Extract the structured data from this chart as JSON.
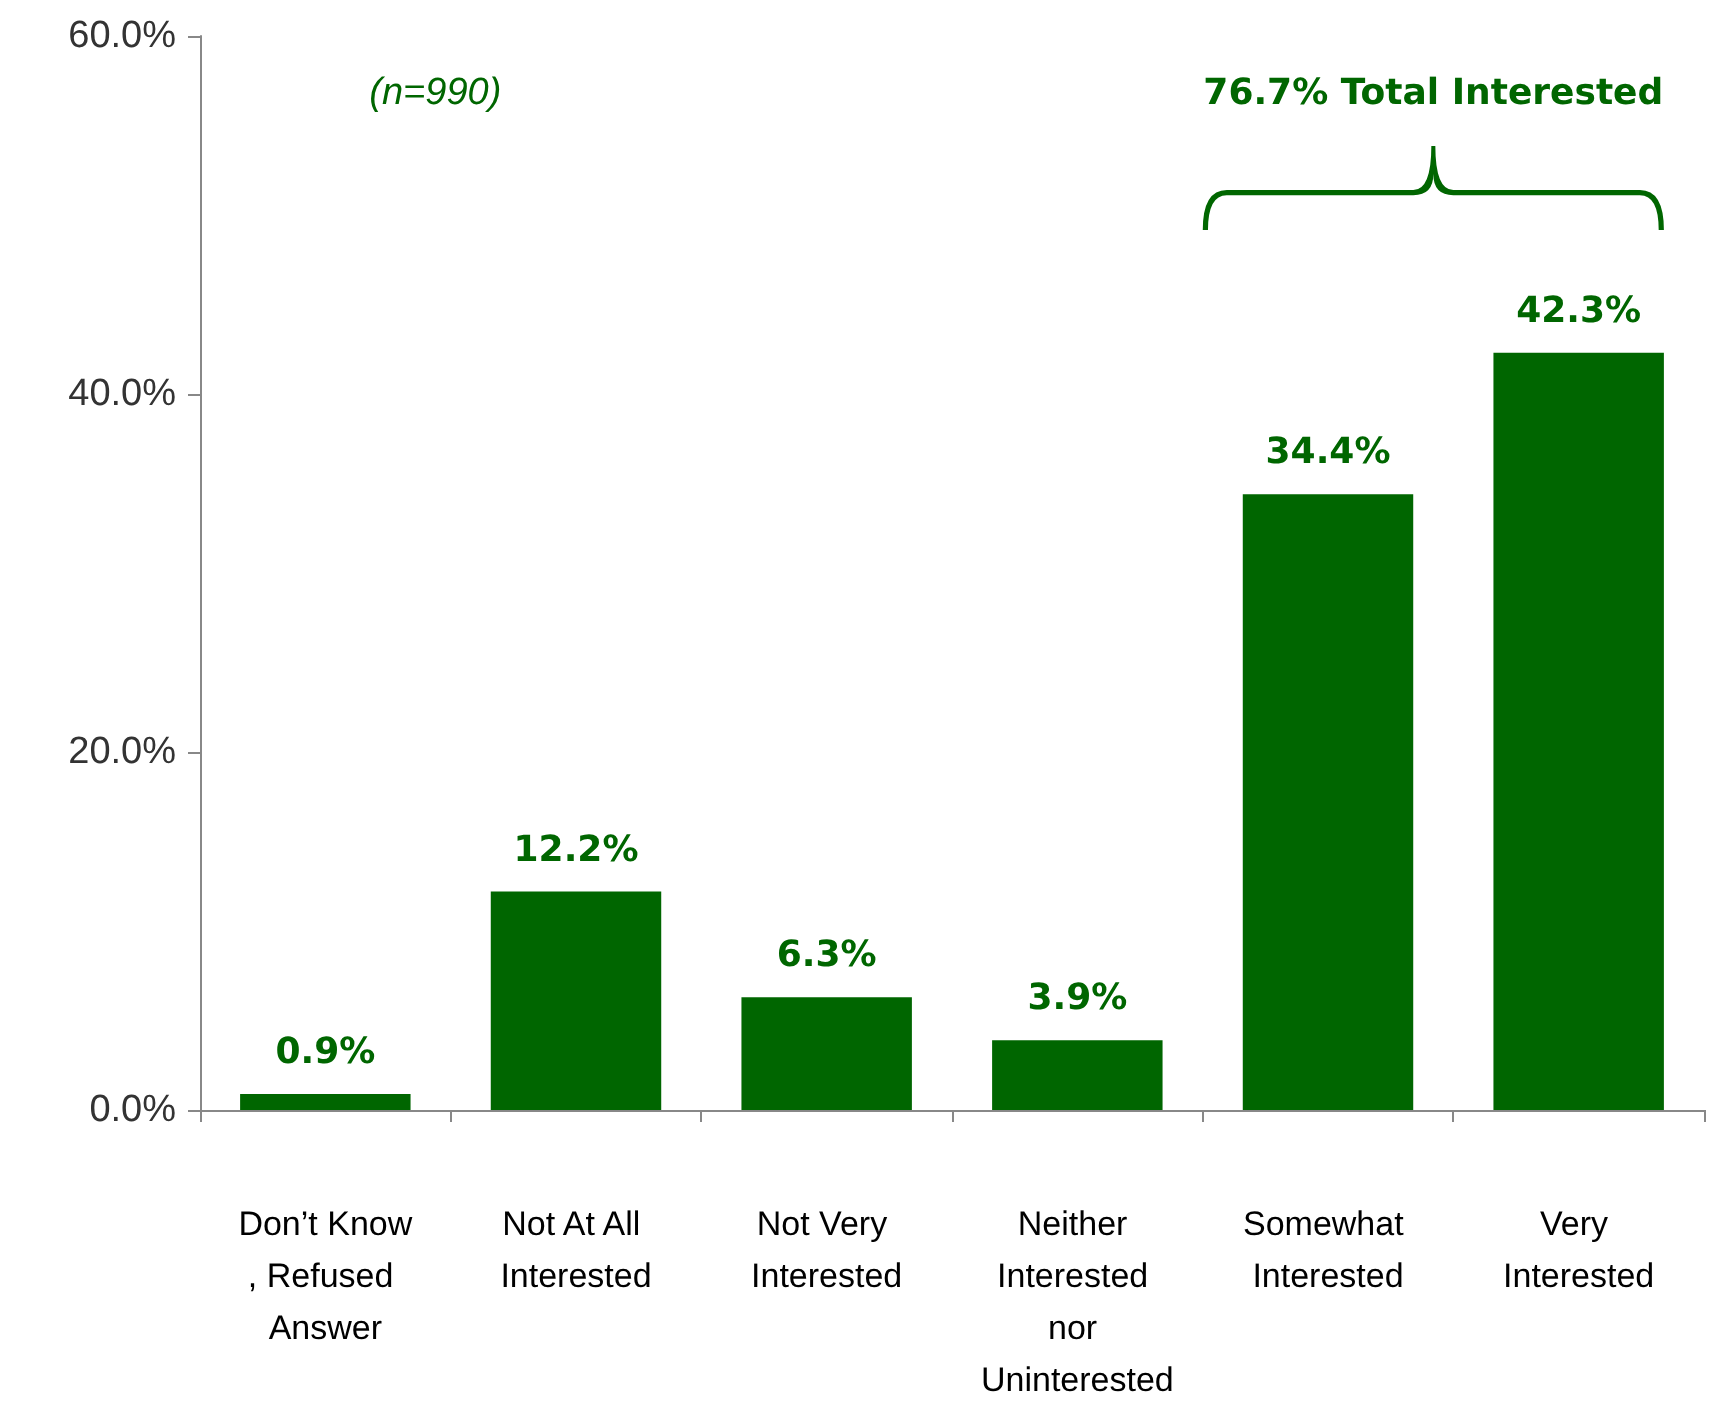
{
  "chart_data": {
    "type": "bar",
    "categories": [
      "Don’t Know, Refused Answer",
      "Not At All Interested",
      "Not Very Interested",
      "Neither Interested nor Uninterested",
      "Somewhat Interested",
      "Very Interested"
    ],
    "values": [
      0.9,
      12.2,
      6.3,
      3.9,
      34.4,
      42.3
    ],
    "value_labels": [
      "0.9%",
      "12.2%",
      "6.3%",
      "3.9%",
      "34.4%",
      "42.3%"
    ],
    "color": "#006600",
    "ylim": [
      0,
      60
    ],
    "yticks": [
      {
        "value": 0,
        "label": "0.0%"
      },
      {
        "value": 20,
        "label": "20.0%"
      },
      {
        "value": 40,
        "label": "40.0%"
      },
      {
        "value": 60,
        "label": "60.0%"
      }
    ],
    "grid": false,
    "annotations": [
      "(n=990)",
      "76.7% Total Interested"
    ]
  }
}
